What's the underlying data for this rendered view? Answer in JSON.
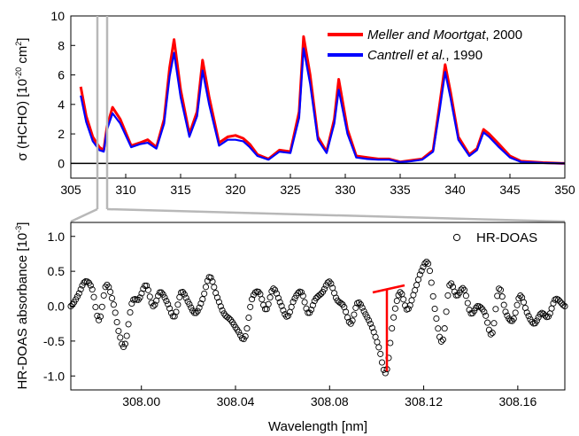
{
  "chart_data": [
    {
      "type": "line",
      "xlim": [
        305,
        350
      ],
      "ylim": [
        -1,
        10
      ],
      "xticks": [
        305,
        310,
        315,
        320,
        325,
        330,
        335,
        340,
        345,
        350
      ],
      "yticks": [
        0,
        2,
        4,
        6,
        8,
        10
      ],
      "ylabel": {
        "main": "σ (HCHO) [10",
        "exp1": "-20",
        "mid": " cm",
        "exp2": "2",
        "end": "]"
      },
      "legend_position": "top-right",
      "legend": [
        {
          "italic": "Meller and Moortgat",
          "suffix": ", 2000",
          "color": "#ff0000"
        },
        {
          "italic": "Cantrell et al.",
          "suffix": ", 1990",
          "color": "#0000ff"
        }
      ],
      "series": [
        {
          "color": "#ff0000",
          "x": [
            305.9,
            306.4,
            307.0,
            307.6,
            308.0,
            308.3,
            308.8,
            309.5,
            310.5,
            311.3,
            312.0,
            312.8,
            313.5,
            314.0,
            314.4,
            315.0,
            315.8,
            316.5,
            317.0,
            317.6,
            318.5,
            319.3,
            320.0,
            320.7,
            321.3,
            322.0,
            323.0,
            324.0,
            325.0,
            325.8,
            326.2,
            326.8,
            327.5,
            328.3,
            329.0,
            329.4,
            330.2,
            331.0,
            332.0,
            333.0,
            334.0,
            335.0,
            336.0,
            337.0,
            338.0,
            338.6,
            339.1,
            339.6,
            340.3,
            341.3,
            342.0,
            342.6,
            343.1,
            344.0,
            345.0,
            346.0,
            348.0,
            350.0
          ],
          "y": [
            5.2,
            3.2,
            1.8,
            1.1,
            0.9,
            2.5,
            3.8,
            3.0,
            1.2,
            1.4,
            1.6,
            1.1,
            3.0,
            6.5,
            8.4,
            5.0,
            2.0,
            3.5,
            7.0,
            4.5,
            1.4,
            1.8,
            1.9,
            1.7,
            1.3,
            0.6,
            0.3,
            0.9,
            0.8,
            3.5,
            8.6,
            6.0,
            1.8,
            0.8,
            3.0,
            5.7,
            2.3,
            0.5,
            0.4,
            0.3,
            0.3,
            0.1,
            0.2,
            0.3,
            0.9,
            4.0,
            6.7,
            4.8,
            1.8,
            0.6,
            1.0,
            2.3,
            2.0,
            1.3,
            0.5,
            0.15,
            0.05,
            0.0
          ]
        },
        {
          "color": "#0000ff",
          "x": [
            305.9,
            306.4,
            307.0,
            307.6,
            308.0,
            308.3,
            308.8,
            309.5,
            310.5,
            311.3,
            312.0,
            312.8,
            313.5,
            314.0,
            314.4,
            315.0,
            315.8,
            316.5,
            317.0,
            317.6,
            318.5,
            319.3,
            320.0,
            320.7,
            321.3,
            322.0,
            323.0,
            324.0,
            325.0,
            325.8,
            326.2,
            326.8,
            327.5,
            328.3,
            329.0,
            329.4,
            330.2,
            331.0,
            332.0,
            333.0,
            334.0,
            335.0,
            336.0,
            337.0,
            338.0,
            338.6,
            339.1,
            339.6,
            340.3,
            341.3,
            342.0,
            342.6,
            343.1,
            344.0,
            345.0,
            346.0,
            348.0,
            350.0
          ],
          "y": [
            4.6,
            2.8,
            1.5,
            0.9,
            0.8,
            2.3,
            3.4,
            2.7,
            1.1,
            1.3,
            1.4,
            1.0,
            2.7,
            5.9,
            7.5,
            4.5,
            1.8,
            3.2,
            6.3,
            4.0,
            1.2,
            1.6,
            1.6,
            1.5,
            1.1,
            0.5,
            0.25,
            0.8,
            0.7,
            3.1,
            7.8,
            5.4,
            1.6,
            0.7,
            2.7,
            5.0,
            2.0,
            0.4,
            0.3,
            0.25,
            0.25,
            0.08,
            0.15,
            0.25,
            0.8,
            3.6,
            6.2,
            4.4,
            1.6,
            0.5,
            0.9,
            2.1,
            1.8,
            1.1,
            0.4,
            0.1,
            0.03,
            0.0
          ]
        }
      ]
    },
    {
      "type": "scatter",
      "xlim": [
        307.97,
        308.18
      ],
      "ylim": [
        -1.2,
        1.2
      ],
      "xticks": [
        "308.00",
        "308.04",
        "308.08",
        "308.12",
        "308.16"
      ],
      "yticks": [
        "1.0",
        "0.5",
        "0.0",
        "-0.5",
        "-1.0"
      ],
      "xlabel": "Wavelength [nm]",
      "ylabel": {
        "main": "HR-DOAS absorbance [10",
        "exp": "-3",
        "end": "]"
      },
      "legend_position": "top-right",
      "legend": [
        {
          "label": "HR-DOAS",
          "marker": "open-circle"
        }
      ],
      "series": [
        {
          "name": "HR-DOAS",
          "x": [
            307.97,
            307.973,
            307.976,
            307.979,
            307.982,
            307.985,
            307.988,
            307.991,
            307.993,
            307.996,
            307.999,
            308.002,
            308.005,
            308.008,
            308.011,
            308.014,
            308.017,
            308.02,
            308.023,
            308.026,
            308.029,
            308.032,
            308.035,
            308.038,
            308.041,
            308.044,
            308.047,
            308.05,
            308.053,
            308.056,
            308.059,
            308.062,
            308.065,
            308.068,
            308.071,
            308.074,
            308.077,
            308.08,
            308.083,
            308.086,
            308.089,
            308.092,
            308.095,
            308.098,
            308.101,
            308.104,
            308.107,
            308.11,
            308.113,
            308.116,
            308.119,
            308.122,
            308.125,
            308.128,
            308.131,
            308.134,
            308.137,
            308.14,
            308.143,
            308.146,
            308.149,
            308.152,
            308.155,
            308.158,
            308.161,
            308.164,
            308.167,
            308.17,
            308.173,
            308.176,
            308.18
          ],
          "y": [
            0.0,
            0.15,
            0.35,
            0.25,
            -0.2,
            0.3,
            0.05,
            -0.45,
            -0.55,
            0.05,
            0.1,
            0.3,
            0.0,
            0.2,
            0.05,
            -0.15,
            0.2,
            0.05,
            -0.1,
            0.1,
            0.42,
            0.15,
            -0.1,
            -0.2,
            -0.35,
            -0.45,
            0.1,
            0.2,
            -0.05,
            0.25,
            0.05,
            -0.15,
            0.1,
            0.2,
            -0.1,
            0.1,
            0.2,
            0.35,
            0.1,
            0.0,
            -0.25,
            0.05,
            -0.1,
            -0.3,
            -0.6,
            -0.95,
            -0.2,
            0.2,
            -0.05,
            0.2,
            0.5,
            0.6,
            -0.1,
            -0.5,
            0.3,
            0.15,
            0.25,
            -0.1,
            0.0,
            -0.1,
            -0.4,
            0.25,
            -0.1,
            -0.2,
            0.15,
            -0.1,
            -0.25,
            -0.1,
            -0.15,
            0.1,
            0.0
          ]
        }
      ]
    }
  ]
}
